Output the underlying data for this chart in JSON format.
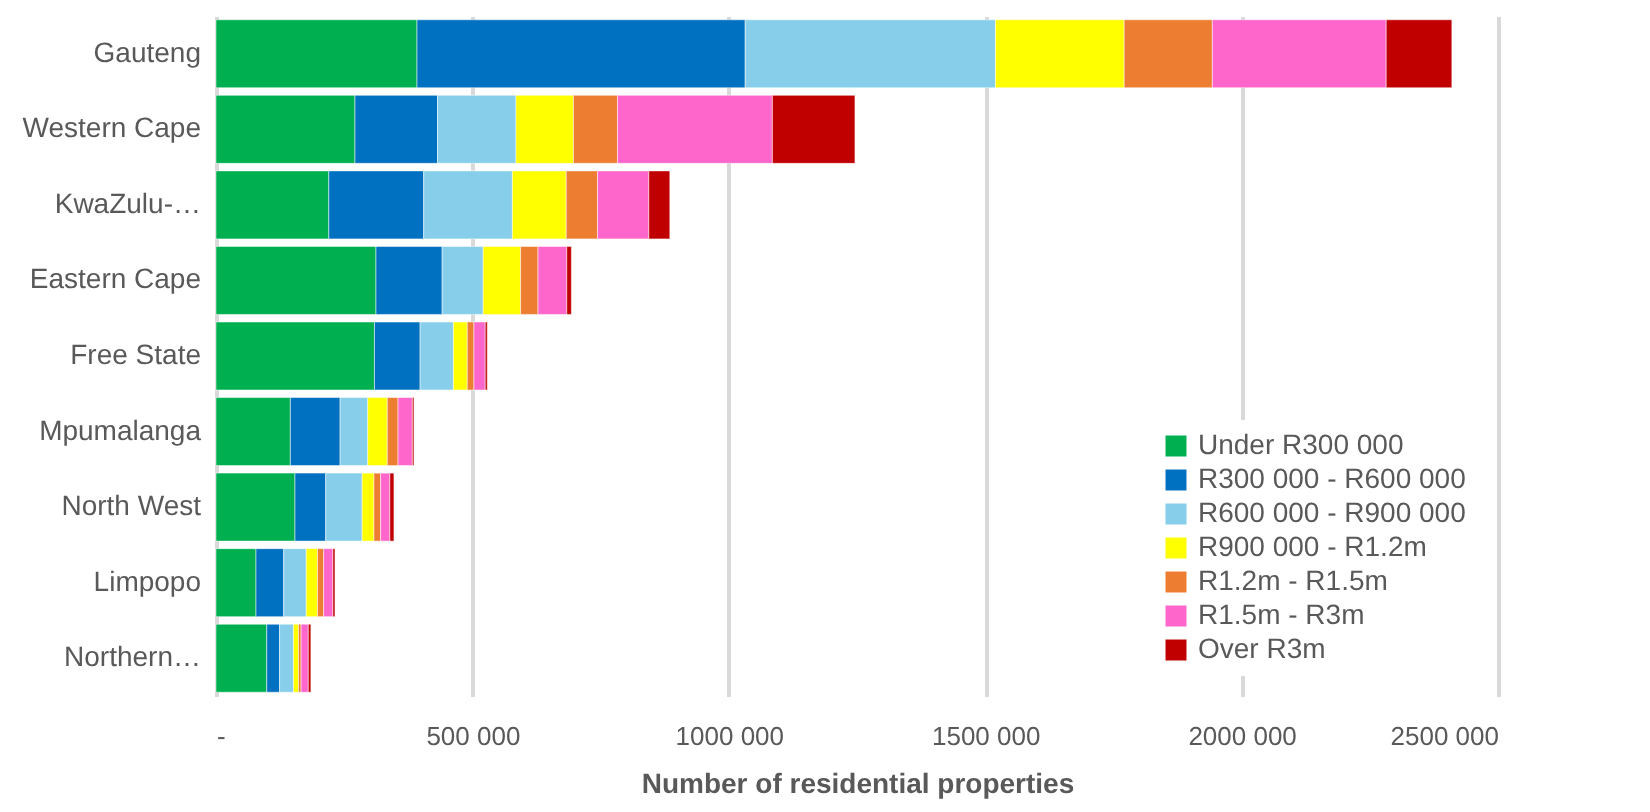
{
  "chart_data": {
    "type": "bar",
    "orientation": "horizontal",
    "stacked": true,
    "xlabel": "Number of residential properties",
    "categories": [
      "Gauteng",
      "Western Cape",
      "KwaZulu-…",
      "Eastern Cape",
      "Free State",
      "Mpumalanga",
      "North West",
      "Limpopo",
      "Northern…"
    ],
    "series": [
      {
        "name": "Under R300 000",
        "color": "#00b050",
        "values": [
          392000,
          271000,
          220000,
          312000,
          309000,
          145000,
          154000,
          78000,
          99000
        ]
      },
      {
        "name": "R300 000 - R600 000",
        "color": "#0070c0",
        "values": [
          640000,
          161000,
          185000,
          129000,
          89000,
          97000,
          60000,
          54000,
          25000
        ]
      },
      {
        "name": "R600 000 - R900 000",
        "color": "#87ceeb",
        "values": [
          488000,
          153000,
          173000,
          80000,
          65000,
          54000,
          71000,
          44000,
          27000
        ]
      },
      {
        "name": "R900 000 - R1.2m",
        "color": "#ffff00",
        "values": [
          251000,
          112000,
          105000,
          73000,
          27000,
          38000,
          23000,
          22000,
          10000
        ]
      },
      {
        "name": "R1.2m - R1.5m",
        "color": "#ed7d31",
        "values": [
          172000,
          86000,
          61000,
          34000,
          13000,
          21000,
          13000,
          12000,
          5000
        ]
      },
      {
        "name": "R1.5m - R3m",
        "color": "#ff66cc",
        "values": [
          339000,
          302000,
          100000,
          56000,
          22000,
          28000,
          18000,
          18000,
          14000
        ]
      },
      {
        "name": "Over R3m",
        "color": "#c00000",
        "values": [
          128000,
          161000,
          41000,
          9000,
          4000,
          3000,
          8000,
          4000,
          5000
        ]
      }
    ],
    "xlim": [
      0,
      2500000
    ],
    "xticks": [
      {
        "value": 0,
        "label": "-"
      },
      {
        "value": 500000,
        "label": "500 000"
      },
      {
        "value": 1000000,
        "label": "1000 000"
      },
      {
        "value": 1500000,
        "label": "1500 000"
      },
      {
        "value": 2000000,
        "label": "2000 000"
      },
      {
        "value": 2500000,
        "label": "2500 000"
      }
    ],
    "grid": "x",
    "legend": "bottom right"
  }
}
